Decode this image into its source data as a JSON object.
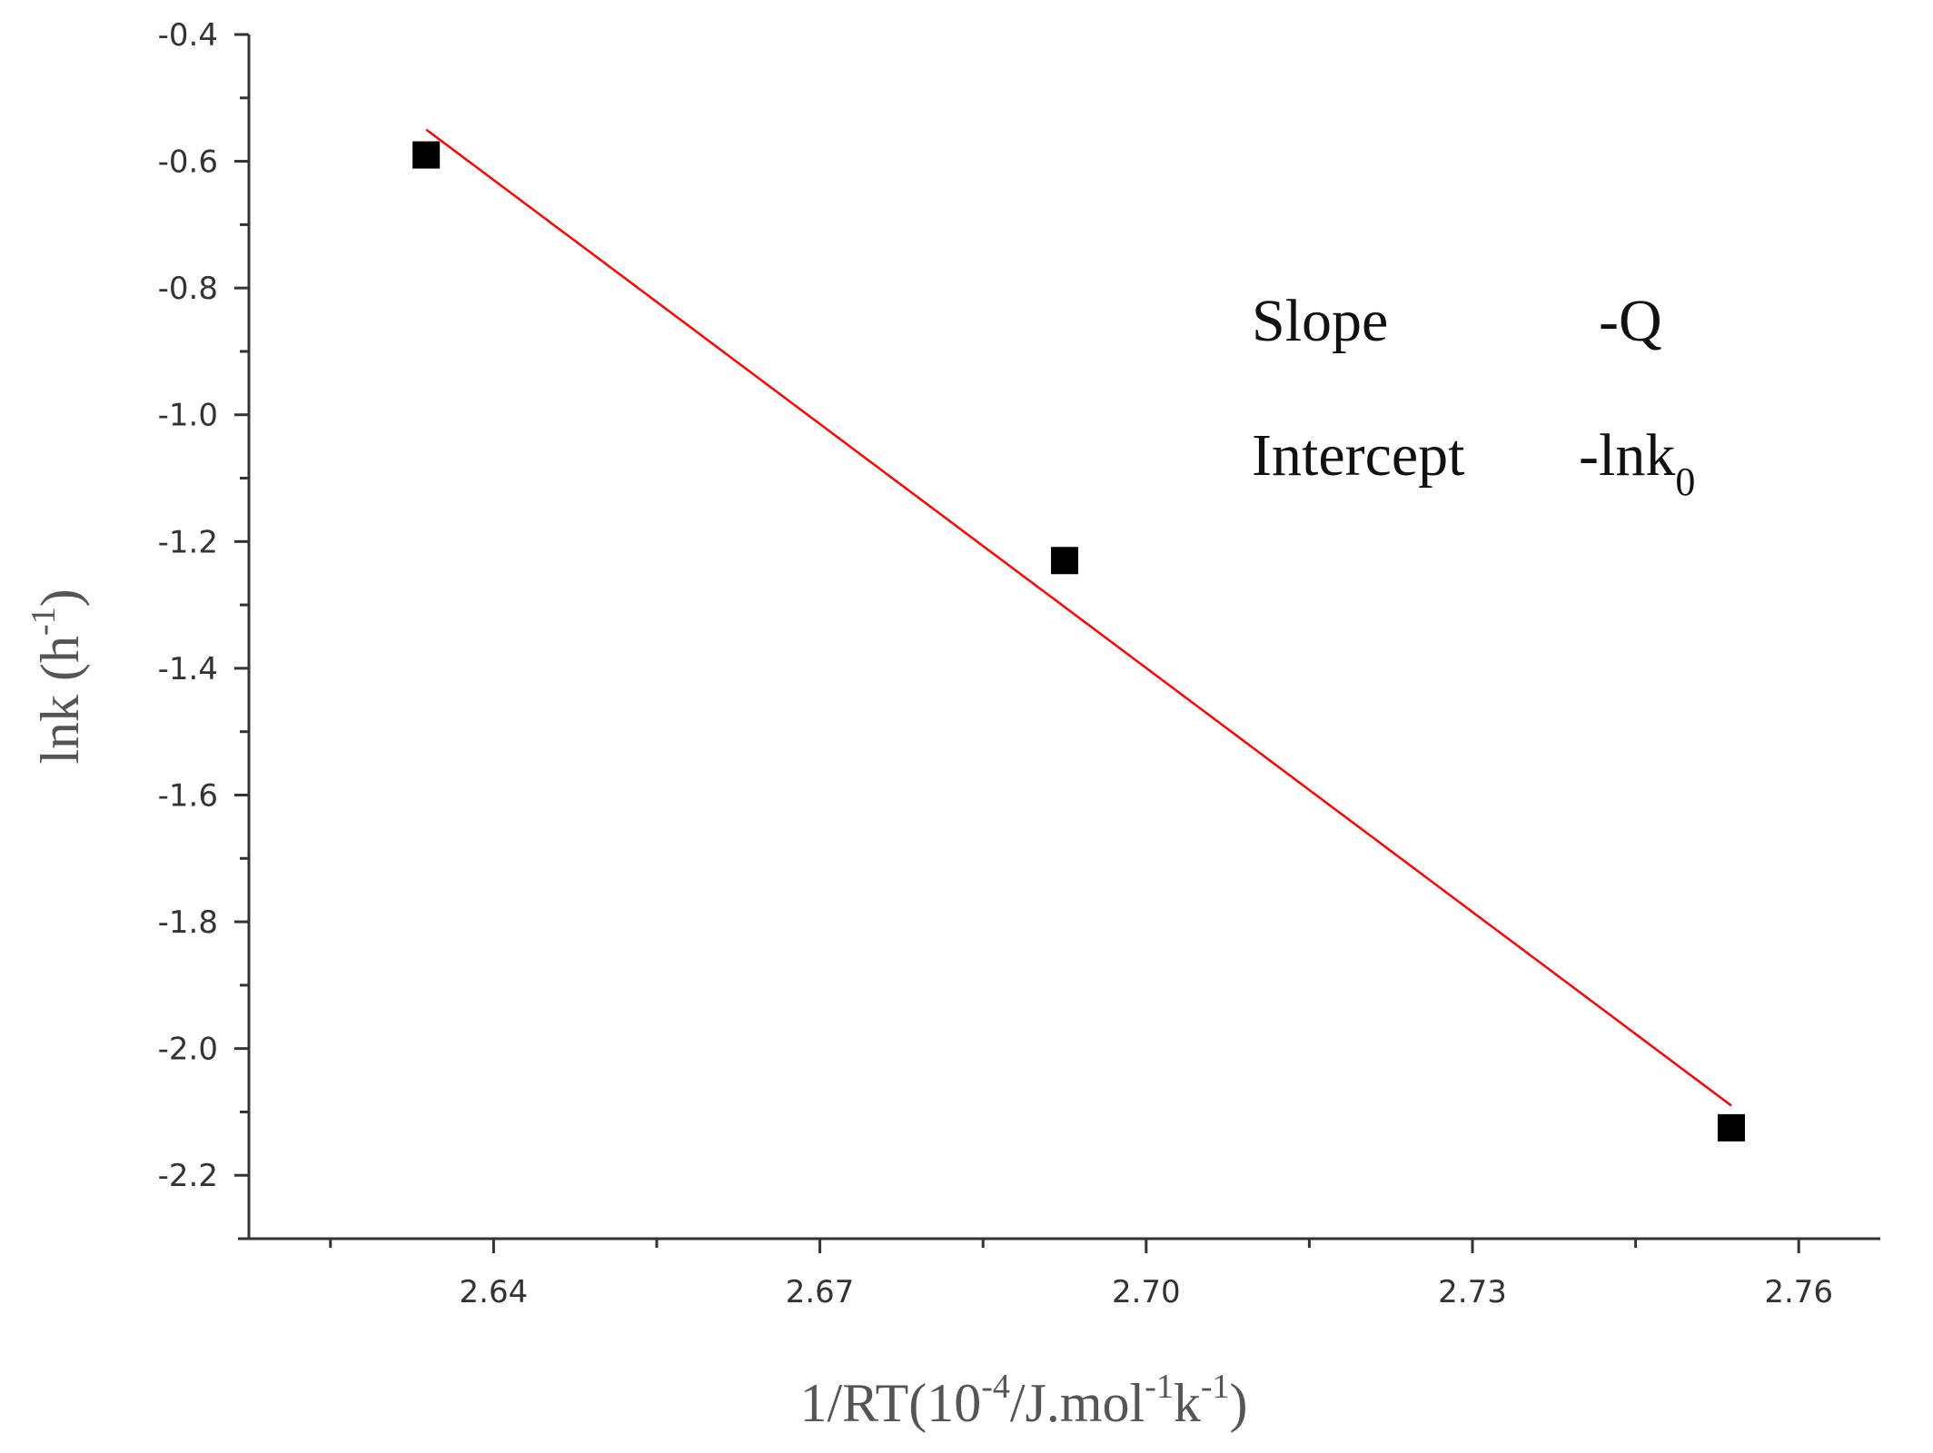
{
  "chart_data": {
    "type": "scatter",
    "xlabel_parts": {
      "prefix": "1/RT(10",
      "exp1": "-4",
      "mid": "/J.mol",
      "exp2": "-1",
      "k": "k",
      "exp3": "-1",
      "suffix": ")"
    },
    "ylabel_parts": {
      "prefix": "lnk (h",
      "exp": "-1",
      "suffix": ")"
    },
    "xlim": [
      2.6175,
      2.7675
    ],
    "ylim": [
      -2.3,
      -0.4
    ],
    "x_ticks": [
      2.64,
      2.67,
      2.7,
      2.73,
      2.76
    ],
    "x_tick_labels": [
      "2.64",
      "2.67",
      "2.70",
      "2.73",
      "2.76"
    ],
    "y_ticks": [
      -0.4,
      -0.6,
      -0.8,
      -1.0,
      -1.2,
      -1.4,
      -1.6,
      -1.8,
      -2.0,
      -2.2
    ],
    "y_tick_labels": [
      "-0.4",
      "-0.6",
      "-0.8",
      "-1.0",
      "-1.2",
      "-1.4",
      "-1.6",
      "-1.8",
      "-2.0",
      "-2.2"
    ],
    "points": [
      {
        "x": 2.6338,
        "y": -0.59
      },
      {
        "x": 2.6925,
        "y": -1.23
      },
      {
        "x": 2.7538,
        "y": -2.125
      }
    ],
    "fit_line": {
      "x": [
        2.6338,
        2.7538
      ],
      "y": [
        -0.55,
        -2.09
      ],
      "color": "#ff0000"
    },
    "marker_color": "#000000",
    "annotations": [
      {
        "label": "Slope",
        "value": "-Q"
      },
      {
        "label": "Intercept",
        "value": "-lnk",
        "value_sub": "0"
      }
    ]
  }
}
